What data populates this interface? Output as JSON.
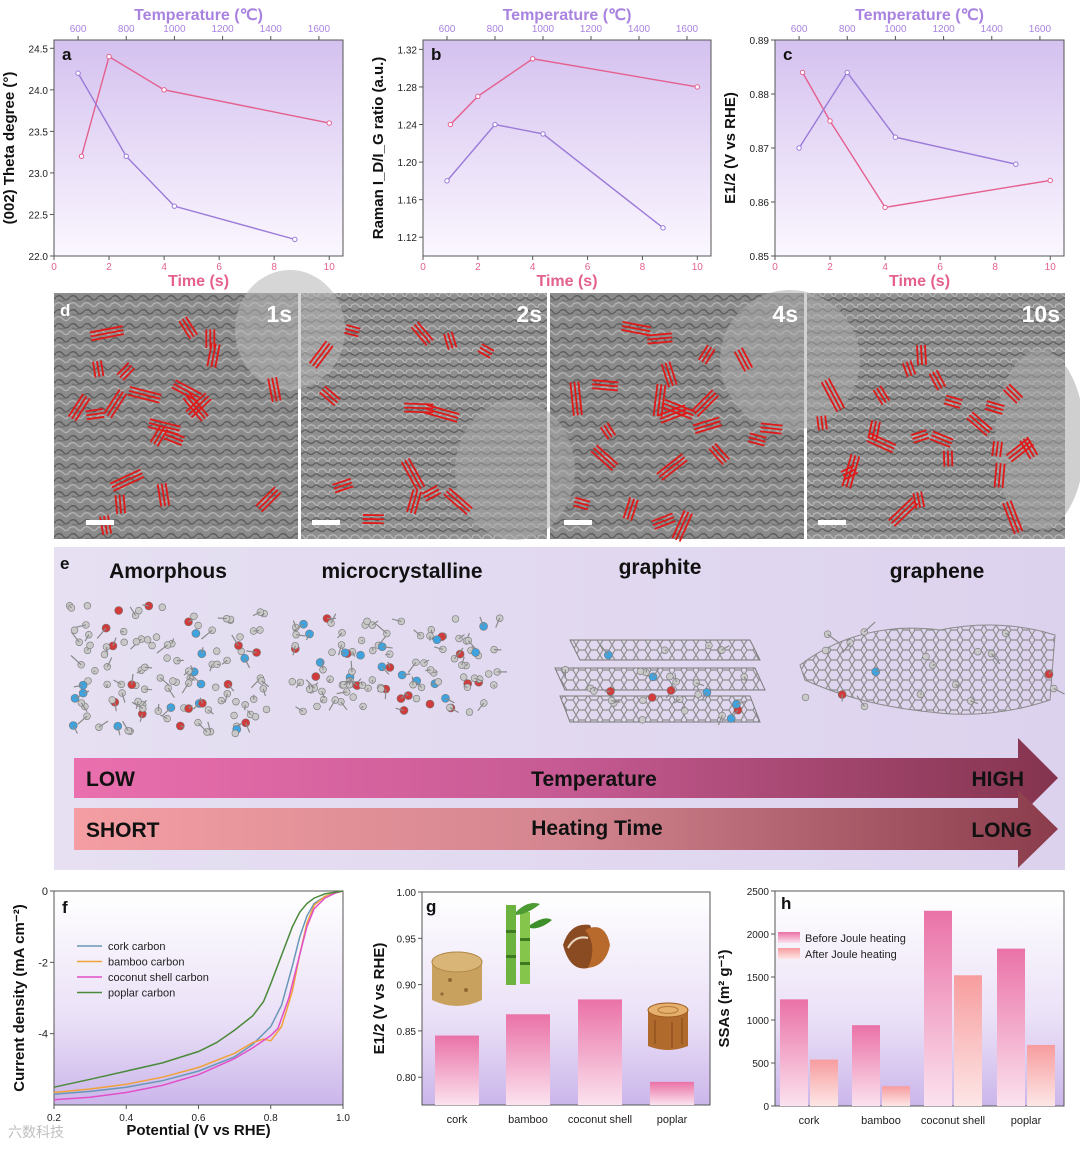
{
  "colors": {
    "pink": "#e4608f",
    "purple": "#9b7ad8",
    "bar_pink": "#ea72a7",
    "bar_light": "#f7a2a6",
    "blue_line": "#6a97b8",
    "orange_line": "#f0a23a",
    "magenta_line": "#e24fc9",
    "green_line": "#4b8a3a",
    "dark_red": "#8a3242",
    "axis_purple_label": "#a983e0"
  },
  "chart_data": [
    {
      "panel": "a",
      "type": "line",
      "xlabel": "Time (s)",
      "x2label": "Temperature (℃)",
      "ylabel": "(002) Theta degree (°)",
      "xlim": [
        0,
        10.5
      ],
      "x2lim": [
        500,
        1700
      ],
      "ylim": [
        22.0,
        24.6
      ],
      "xticks": [
        "0",
        "2",
        "4",
        "6",
        "8",
        "10"
      ],
      "x2ticks": [
        "600",
        "800",
        "1000",
        "1200",
        "1400",
        "1600"
      ],
      "yticks": [
        "22.0",
        "22.5",
        "23.0",
        "23.5",
        "24.0",
        "24.5"
      ],
      "series": [
        {
          "name": "Time",
          "axis": "bottom",
          "x": [
            1,
            2,
            4,
            10
          ],
          "y": [
            23.2,
            24.4,
            24.0,
            23.6
          ]
        },
        {
          "name": "Temperature",
          "axis": "top",
          "x": [
            600,
            800,
            1000,
            1500
          ],
          "y": [
            24.2,
            23.2,
            22.6,
            22.2
          ]
        }
      ]
    },
    {
      "panel": "b",
      "type": "line",
      "xlabel": "Time (s)",
      "x2label": "Temperature (℃)",
      "ylabel": "Raman I_D/I_G ratio (a.u.)",
      "xlim": [
        0,
        10.5
      ],
      "x2lim": [
        500,
        1700
      ],
      "ylim": [
        1.1,
        1.33
      ],
      "xticks": [
        "0",
        "2",
        "4",
        "6",
        "8",
        "10"
      ],
      "x2ticks": [
        "600",
        "800",
        "1000",
        "1200",
        "1400",
        "1600"
      ],
      "yticks": [
        "1.12",
        "1.16",
        "1.20",
        "1.24",
        "1.28",
        "1.32"
      ],
      "series": [
        {
          "name": "Time",
          "axis": "bottom",
          "x": [
            1,
            2,
            4,
            10
          ],
          "y": [
            1.24,
            1.27,
            1.31,
            1.28
          ]
        },
        {
          "name": "Temperature",
          "axis": "top",
          "x": [
            600,
            800,
            1000,
            1500
          ],
          "y": [
            1.18,
            1.24,
            1.23,
            1.13
          ]
        }
      ]
    },
    {
      "panel": "c",
      "type": "line",
      "xlabel": "Time (s)",
      "x2label": "Temperature (℃)",
      "ylabel": "E1/2 (V vs RHE)",
      "xlim": [
        0,
        10.5
      ],
      "x2lim": [
        500,
        1700
      ],
      "ylim": [
        0.85,
        0.89
      ],
      "xticks": [
        "0",
        "2",
        "4",
        "6",
        "8",
        "10"
      ],
      "x2ticks": [
        "600",
        "800",
        "1000",
        "1200",
        "1400",
        "1600"
      ],
      "yticks": [
        "0.85",
        "0.86",
        "0.87",
        "0.88",
        "0.89"
      ],
      "series": [
        {
          "name": "Time",
          "axis": "bottom",
          "x": [
            1,
            2,
            4,
            10
          ],
          "y": [
            0.884,
            0.875,
            0.859,
            0.864
          ]
        },
        {
          "name": "Temperature",
          "axis": "top",
          "x": [
            600,
            800,
            1000,
            1500
          ],
          "y": [
            0.87,
            0.884,
            0.872,
            0.867
          ]
        }
      ]
    },
    {
      "panel": "f",
      "type": "line",
      "xlabel": "Potential (V vs RHE)",
      "ylabel": "Current density (mA cm⁻²)",
      "xlim": [
        0.2,
        1.0
      ],
      "ylim": [
        -6,
        0
      ],
      "xticks": [
        "0.2",
        "0.4",
        "0.6",
        "0.8",
        "1.0"
      ],
      "yticks": [
        "0",
        "-2",
        "-4"
      ],
      "legend": "top-left",
      "series": [
        {
          "name": "cork carbon",
          "x": [
            0.2,
            0.3,
            0.4,
            0.5,
            0.6,
            0.7,
            0.75,
            0.8,
            0.83,
            0.86,
            0.88,
            0.9,
            0.92,
            0.95,
            0.98,
            1.0
          ],
          "y": [
            -5.7,
            -5.62,
            -5.5,
            -5.32,
            -5.05,
            -4.65,
            -4.3,
            -3.8,
            -3.2,
            -2.1,
            -1.3,
            -0.7,
            -0.35,
            -0.15,
            -0.05,
            0
          ]
        },
        {
          "name": "bamboo carbon",
          "x": [
            0.2,
            0.3,
            0.4,
            0.5,
            0.6,
            0.7,
            0.75,
            0.78,
            0.8,
            0.83,
            0.86,
            0.88,
            0.9,
            0.92,
            0.95,
            0.98,
            1.0
          ],
          "y": [
            -5.65,
            -5.55,
            -5.42,
            -5.22,
            -4.95,
            -4.55,
            -4.25,
            -4.15,
            -4.2,
            -3.8,
            -2.8,
            -1.8,
            -0.9,
            -0.4,
            -0.15,
            -0.05,
            0
          ]
        },
        {
          "name": "coconut shell carbon",
          "x": [
            0.2,
            0.3,
            0.4,
            0.5,
            0.6,
            0.7,
            0.75,
            0.8,
            0.82,
            0.85,
            0.88,
            0.9,
            0.92,
            0.95,
            0.98,
            1.0
          ],
          "y": [
            -5.85,
            -5.78,
            -5.65,
            -5.45,
            -5.15,
            -4.7,
            -4.4,
            -4.05,
            -3.85,
            -3.0,
            -1.8,
            -1.0,
            -0.5,
            -0.2,
            -0.05,
            0
          ]
        },
        {
          "name": "poplar carbon",
          "x": [
            0.2,
            0.3,
            0.4,
            0.5,
            0.6,
            0.65,
            0.7,
            0.75,
            0.78,
            0.8,
            0.83,
            0.86,
            0.88,
            0.9,
            0.92,
            0.95,
            1.0
          ],
          "y": [
            -5.5,
            -5.28,
            -5.05,
            -4.82,
            -4.5,
            -4.25,
            -3.9,
            -3.5,
            -3.1,
            -2.6,
            -1.8,
            -1.0,
            -0.6,
            -0.35,
            -0.2,
            -0.08,
            0
          ]
        }
      ]
    },
    {
      "panel": "g",
      "type": "bar",
      "ylabel": "E1/2 (V vs RHE)",
      "categories": [
        "cork",
        "bamboo",
        "coconut shell",
        "poplar"
      ],
      "values": [
        0.845,
        0.868,
        0.884,
        0.795
      ],
      "ylim": [
        0.77,
        1.0
      ],
      "yticks": [
        "0.80",
        "0.85",
        "0.90",
        "0.95",
        "1.00"
      ]
    },
    {
      "panel": "h",
      "type": "bar",
      "ylabel": "SSAs (m² g⁻¹)",
      "categories": [
        "cork",
        "bamboo",
        "coconut shell",
        "poplar"
      ],
      "series": [
        {
          "name": "Before Joule heating",
          "values": [
            1240,
            940,
            2270,
            1830
          ]
        },
        {
          "name": "After Joule heating",
          "values": [
            540,
            230,
            1520,
            710
          ]
        }
      ],
      "ylim": [
        0,
        2500
      ],
      "yticks": [
        "0",
        "500",
        "1000",
        "1500",
        "2000",
        "2500"
      ],
      "legend": "top-left"
    }
  ],
  "panel_letters": {
    "a": "a",
    "b": "b",
    "c": "c",
    "d": "d",
    "e": "e",
    "f": "f",
    "g": "g",
    "h": "h"
  },
  "tem": {
    "labels": [
      "1s",
      "2s",
      "4s",
      "10s"
    ]
  },
  "structures": {
    "labels": [
      "Amorphous",
      "microcrystalline",
      "graphite",
      "graphene"
    ]
  },
  "arrows": {
    "temp_low": "LOW",
    "temp_label": "Temperature",
    "temp_high": "HIGH",
    "time_short": "SHORT",
    "time_label": "Heating Time",
    "time_long": "LONG"
  },
  "watermark": "六数科技"
}
